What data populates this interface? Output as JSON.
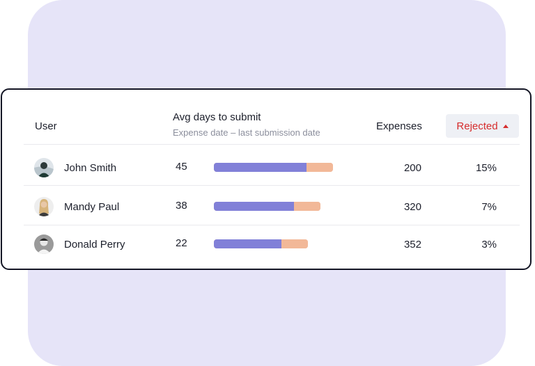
{
  "header": {
    "user": "User",
    "avg_days": "Avg days to submit",
    "avg_days_sub": "Expense date – last submission date",
    "expenses": "Expenses",
    "rejected": "Rejected"
  },
  "rows": [
    {
      "name": "John Smith",
      "days": "45",
      "expenses": "200",
      "rejected": "15%",
      "bar_total": 0.88,
      "bar_fill": 0.78
    },
    {
      "name": "Mandy Paul",
      "days": "38",
      "expenses": "320",
      "rejected": "7%",
      "bar_total": 0.79,
      "bar_fill": 0.75
    },
    {
      "name": "Donald Perry",
      "days": "22",
      "expenses": "352",
      "rejected": "3%",
      "bar_total": 0.7,
      "bar_fill": 0.72
    }
  ],
  "colors": {
    "background_panel": "#e6e4f8",
    "bar_primary": "#8180d8",
    "bar_secondary": "#f2b898",
    "rejected_accent": "#d62d2d"
  },
  "icons": [
    "avatar",
    "chevron-up-icon"
  ]
}
